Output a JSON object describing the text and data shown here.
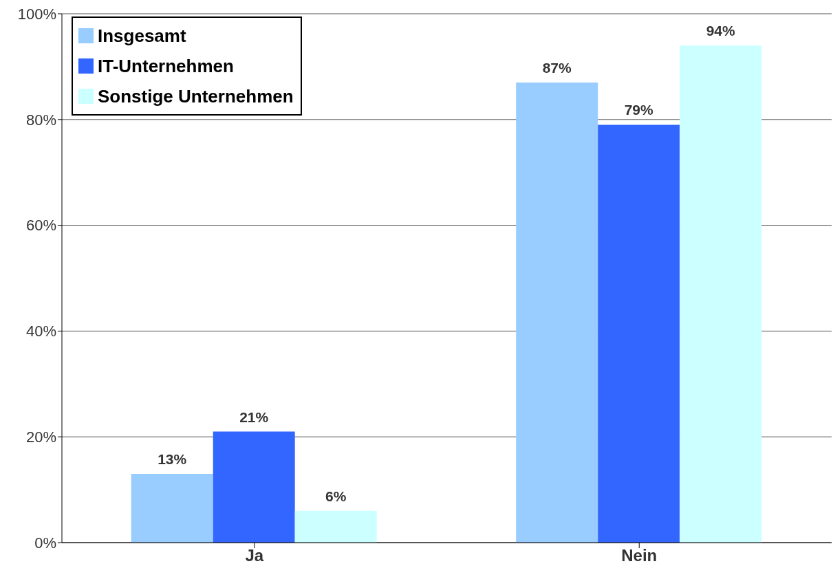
{
  "chart_data": {
    "type": "bar",
    "categories": [
      "Ja",
      "Nein"
    ],
    "series": [
      {
        "name": "Insgesamt",
        "color": "#99ccff",
        "values": [
          13,
          87
        ],
        "value_labels": [
          "13%",
          "87%"
        ]
      },
      {
        "name": "IT-Unternehmen",
        "color": "#3366ff",
        "values": [
          21,
          79
        ],
        "value_labels": [
          "21%",
          "79%"
        ]
      },
      {
        "name": "Sonstige Unternehmen",
        "color": "#ccffff",
        "values": [
          6,
          94
        ],
        "value_labels": [
          "6%",
          "94%"
        ]
      }
    ],
    "ylim": [
      0,
      100
    ],
    "yticks": [
      {
        "value": 0,
        "label": "0%"
      },
      {
        "value": 20,
        "label": "20%"
      },
      {
        "value": 40,
        "label": "40%"
      },
      {
        "value": 60,
        "label": "60%"
      },
      {
        "value": 80,
        "label": "80%"
      },
      {
        "value": 100,
        "label": "100%"
      }
    ],
    "grid": "y",
    "legend": "top left"
  }
}
